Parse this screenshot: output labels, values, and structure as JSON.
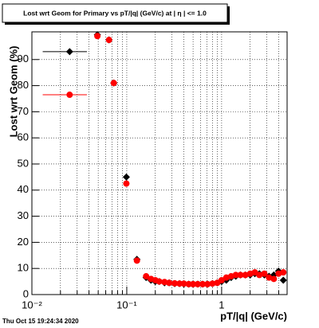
{
  "chart_data": {
    "type": "scatter",
    "title": "Lost wrt Geom for Primary vs pT/|q| (GeV/c) at |  η | <= 1.0",
    "x_label": "pT/|q| (GeV/c)",
    "y_label": "Lost wrt Geom (%)",
    "timestamp": "Thu Oct 15 19:24:34 2020",
    "x_log": true,
    "grid": true,
    "xlim": [
      0.01,
      4.9
    ],
    "ylim": [
      0,
      100.6
    ],
    "xticks": [
      {
        "value": 0.01,
        "label": "10⁻²"
      },
      {
        "value": 0.1,
        "label": "10⁻¹"
      },
      1
    ],
    "xminor": [
      0.02,
      0.03,
      0.04,
      0.05,
      0.06,
      0.07,
      0.08,
      0.09,
      0.2,
      0.3,
      0.4,
      0.5,
      0.6,
      0.7,
      0.8,
      0.9,
      2,
      3,
      4
    ],
    "yticks": [
      0,
      10,
      20,
      30,
      40,
      50,
      60,
      70,
      80,
      90
    ],
    "series": [
      {
        "color": "#000000",
        "marker": "diamond",
        "x": [
          0.025,
          0.049,
          0.065,
          0.073,
          0.099,
          0.128,
          0.16,
          0.18,
          0.2,
          0.22,
          0.25,
          0.28,
          0.32,
          0.36,
          0.4,
          0.45,
          0.5,
          0.56,
          0.63,
          0.71,
          0.8,
          0.9,
          1.0,
          1.12,
          1.26,
          1.41,
          1.58,
          1.78,
          2.0,
          2.24,
          2.5,
          2.82,
          3.16,
          3.55,
          3.98,
          4.47
        ],
        "values": [
          93,
          99.5,
          97.5,
          81,
          45,
          13.5,
          6.5,
          5.5,
          5,
          5,
          4.5,
          4.5,
          4.2,
          4.2,
          4,
          4,
          4,
          4,
          4,
          4,
          4.2,
          4.5,
          5,
          5.5,
          6.5,
          7,
          7.5,
          7.5,
          7.5,
          8,
          8,
          7.5,
          7,
          7.5,
          9,
          5.5
        ],
        "x_low": [
          0.013,
          null,
          null,
          null,
          null,
          null,
          null,
          null,
          null,
          null,
          null,
          null,
          null,
          null,
          null,
          null,
          null,
          null,
          null,
          null,
          null,
          null,
          null,
          null,
          null,
          null,
          null,
          null,
          null,
          null,
          null,
          null,
          null,
          null,
          null,
          null
        ],
        "x_high": [
          0.038,
          null,
          null,
          null,
          null,
          null,
          null,
          null,
          null,
          null,
          null,
          null,
          null,
          null,
          null,
          null,
          null,
          null,
          null,
          null,
          null,
          null,
          null,
          null,
          null,
          null,
          null,
          null,
          null,
          null,
          null,
          null,
          null,
          null,
          null,
          null
        ]
      },
      {
        "color": "#ff0000",
        "marker": "circle",
        "x": [
          0.025,
          0.049,
          0.065,
          0.073,
          0.099,
          0.128,
          0.16,
          0.18,
          0.2,
          0.22,
          0.25,
          0.28,
          0.32,
          0.36,
          0.4,
          0.45,
          0.5,
          0.56,
          0.63,
          0.71,
          0.8,
          0.9,
          1.0,
          1.12,
          1.26,
          1.41,
          1.58,
          1.78,
          2.0,
          2.24,
          2.5,
          2.82,
          3.16,
          3.55,
          3.98,
          4.47
        ],
        "values": [
          76.5,
          99,
          97.5,
          81,
          42.5,
          13,
          7,
          6,
          5.5,
          5,
          4.8,
          4.5,
          4.3,
          4.2,
          4.2,
          4,
          4,
          4,
          4,
          4,
          4.2,
          4.5,
          5.5,
          6.5,
          7,
          7.5,
          7.5,
          7.5,
          8,
          8.5,
          7.5,
          8,
          6.5,
          6,
          8,
          8.5
        ],
        "x_low": [
          0.013,
          null,
          null,
          null,
          null,
          null,
          null,
          null,
          null,
          null,
          null,
          null,
          null,
          null,
          null,
          null,
          null,
          null,
          null,
          null,
          null,
          null,
          null,
          null,
          null,
          null,
          null,
          null,
          null,
          null,
          null,
          null,
          null,
          null,
          null,
          null
        ],
        "x_high": [
          0.038,
          null,
          null,
          null,
          null,
          null,
          null,
          null,
          null,
          null,
          null,
          null,
          null,
          null,
          null,
          null,
          null,
          null,
          null,
          null,
          null,
          null,
          null,
          null,
          null,
          null,
          null,
          null,
          null,
          null,
          null,
          null,
          null,
          null,
          null,
          null
        ]
      }
    ]
  }
}
